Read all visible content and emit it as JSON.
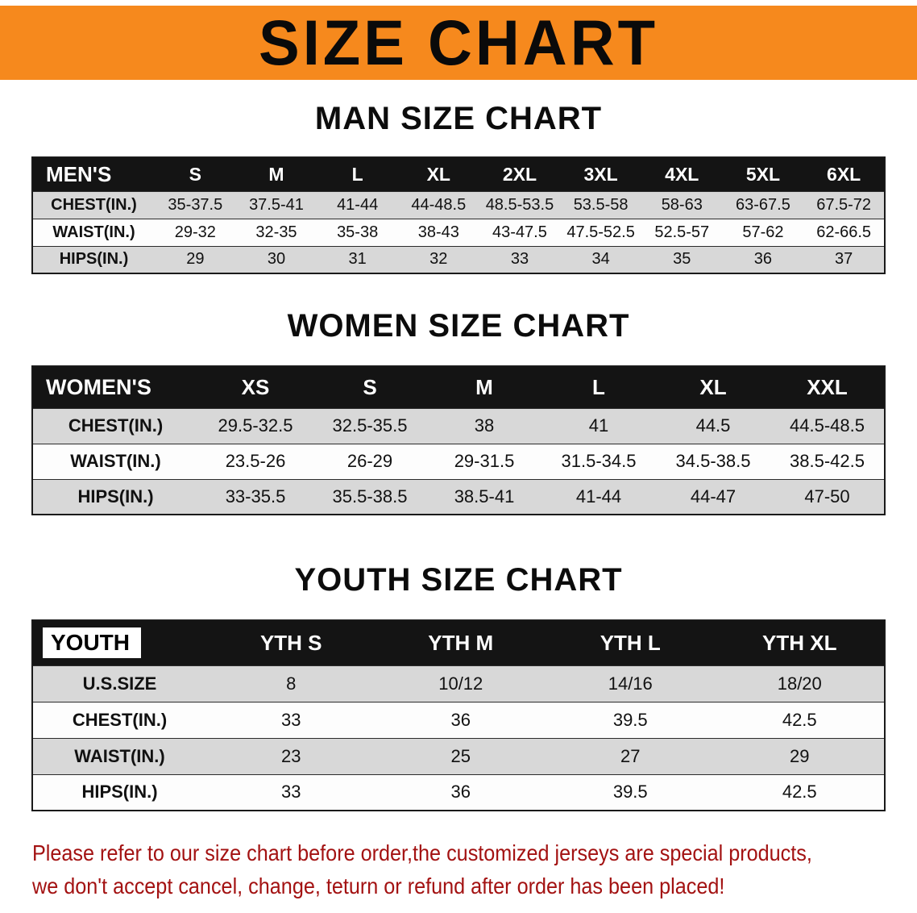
{
  "banner": {
    "title": "SIZE CHART",
    "bg_color": "#f6891d"
  },
  "men": {
    "heading": "MAN SIZE CHART",
    "table": {
      "header": [
        "MEN'S",
        "S",
        "M",
        "L",
        "XL",
        "2XL",
        "3XL",
        "4XL",
        "5XL",
        "6XL"
      ],
      "rows": [
        [
          "CHEST(IN.)",
          "35-37.5",
          "37.5-41",
          "41-44",
          "44-48.5",
          "48.5-53.5",
          "53.5-58",
          "58-63",
          "63-67.5",
          "67.5-72"
        ],
        [
          "WAIST(IN.)",
          "29-32",
          "32-35",
          "35-38",
          "38-43",
          "43-47.5",
          "47.5-52.5",
          "52.5-57",
          "57-62",
          "62-66.5"
        ],
        [
          "HIPS(IN.)",
          "29",
          "30",
          "31",
          "32",
          "33",
          "34",
          "35",
          "36",
          "37"
        ]
      ]
    }
  },
  "women": {
    "heading": "WOMEN SIZE CHART",
    "table": {
      "header": [
        "WOMEN'S",
        "XS",
        "S",
        "M",
        "L",
        "XL",
        "XXL"
      ],
      "rows": [
        [
          "CHEST(IN.)",
          "29.5-32.5",
          "32.5-35.5",
          "38",
          "41",
          "44.5",
          "44.5-48.5"
        ],
        [
          "WAIST(IN.)",
          "23.5-26",
          "26-29",
          "29-31.5",
          "31.5-34.5",
          "34.5-38.5",
          "38.5-42.5"
        ],
        [
          "HIPS(IN.)",
          "33-35.5",
          "35.5-38.5",
          "38.5-41",
          "41-44",
          "44-47",
          "47-50"
        ]
      ]
    }
  },
  "youth": {
    "heading": "YOUTH SIZE CHART",
    "table": {
      "header": [
        "YOUTH",
        "YTH S",
        "YTH M",
        "YTH L",
        "YTH XL"
      ],
      "rows": [
        [
          "U.S.SIZE",
          "8",
          "10/12",
          "14/16",
          "18/20"
        ],
        [
          "CHEST(IN.)",
          "33",
          "36",
          "39.5",
          "42.5"
        ],
        [
          "WAIST(IN.)",
          "23",
          "25",
          "27",
          "29"
        ],
        [
          "HIPS(IN.)",
          "33",
          "36",
          "39.5",
          "42.5"
        ]
      ]
    }
  },
  "footer": {
    "line1": "Please refer to our size chart before order,the customized jerseys are special products,",
    "line2": "we don't accept cancel, change, teturn or refund after order has been placed!",
    "text_color": "#a31212"
  }
}
